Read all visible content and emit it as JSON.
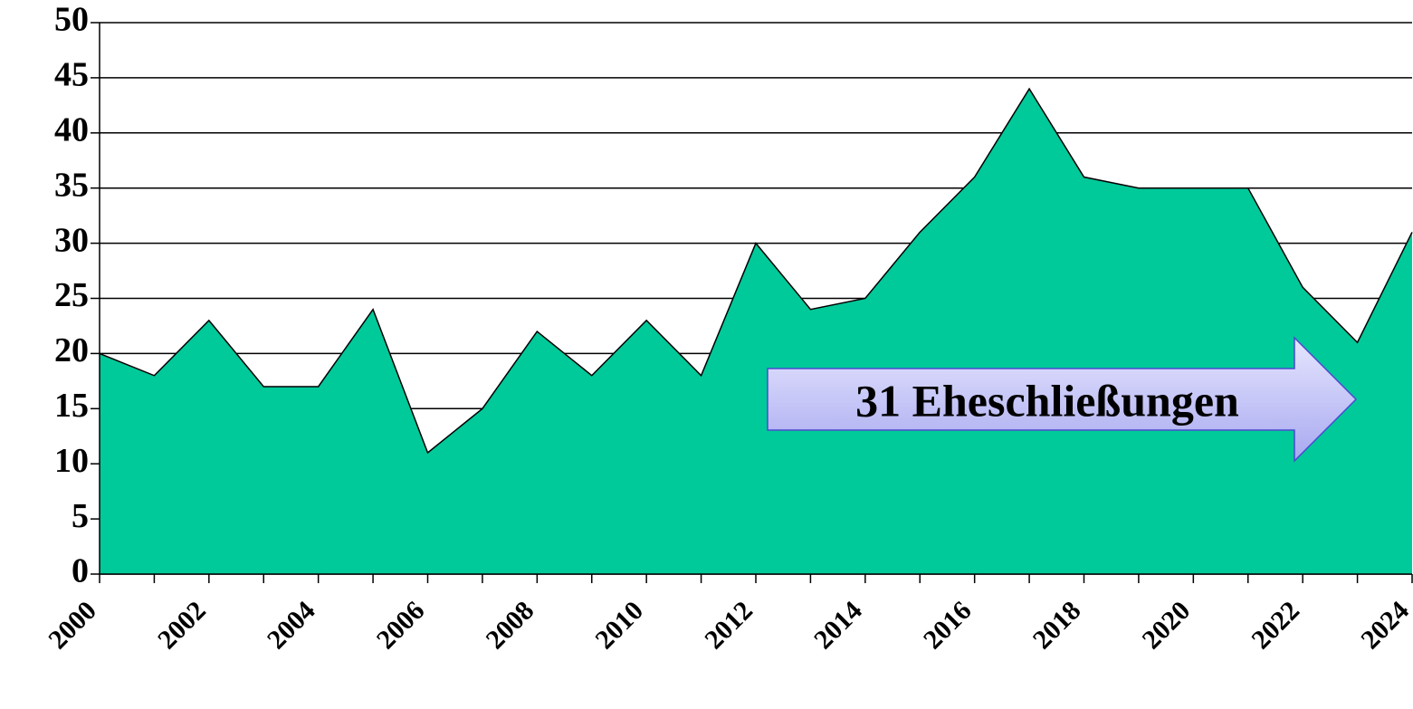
{
  "chart_data": {
    "type": "area",
    "categories": [
      "2000",
      null,
      "2002",
      null,
      "2004",
      null,
      "2006",
      null,
      "2008",
      null,
      "2010",
      null,
      "2012",
      null,
      "2014",
      null,
      "2016",
      null,
      "2018",
      null,
      "2020",
      null,
      "2022",
      null,
      "2024"
    ],
    "values": [
      20,
      18,
      23,
      17,
      17,
      24,
      11,
      15,
      22,
      18,
      23,
      18,
      30,
      24,
      25,
      31,
      36,
      44,
      36,
      35,
      35,
      35,
      26,
      21,
      31
    ],
    "color": "#00c99a",
    "ylim": [
      0,
      50
    ],
    "yticks": [
      0,
      5,
      10,
      15,
      20,
      25,
      30,
      35,
      40,
      45,
      50
    ],
    "grid": true,
    "annotation": "31 Eheschließungen"
  }
}
